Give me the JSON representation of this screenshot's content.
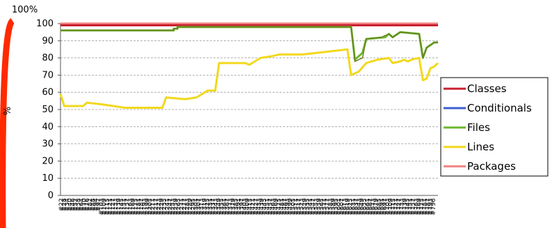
{
  "chart_data": {
    "type": "line",
    "y_unit_label": "100%",
    "ylabel": "%",
    "ylim": [
      0,
      100
    ],
    "yticks": [
      0,
      10,
      20,
      30,
      40,
      50,
      60,
      70,
      80,
      90,
      100
    ],
    "grid": true,
    "legend_position": "right",
    "x_labels": [
      "#22",
      "#28",
      "#34",
      "#40",
      "#46",
      "#52",
      "#58",
      "#64",
      "#70",
      "#76",
      "#82",
      "#88",
      "#94",
      "#97",
      "#103",
      "#109",
      "#115",
      "#121",
      "#127",
      "#133",
      "#139",
      "#145",
      "#151",
      "#157",
      "#163",
      "#169",
      "#175",
      "#181",
      "#187",
      "#193",
      "#199",
      "#205",
      "#211",
      "#217",
      "#223",
      "#229",
      "#235",
      "#241",
      "#247",
      "#253",
      "#259",
      "#265",
      "#271",
      "#277",
      "#283",
      "#289",
      "#295",
      "#301",
      "#307",
      "#313",
      "#319",
      "#325",
      "#331",
      "#337",
      "#343",
      "#349",
      "#355",
      "#361",
      "#367",
      "#373",
      "#379",
      "#385",
      "#391",
      "#397",
      "#403",
      "#409",
      "#415",
      "#421",
      "#427",
      "#433",
      "#439",
      "#445",
      "#451",
      "#457",
      "#463",
      "#469",
      "#475",
      "#481",
      "#487",
      "#493",
      "#499",
      "#505",
      "#511",
      "#517",
      "#523",
      "#529",
      "#535",
      "#541",
      "#547",
      "#553",
      "#559",
      "#565",
      "#571",
      "#577",
      "#583",
      "#589",
      "#595",
      "#601",
      "#607",
      "#613",
      "#619",
      "#625",
      "#631",
      "#637",
      "#643",
      "#649",
      "#655",
      "#661",
      "#667",
      "#673",
      "#679",
      "#685",
      "#691",
      "#697",
      "#703",
      "#709",
      "#715",
      "#721",
      "#727",
      "#733",
      "#739",
      "#745",
      "#751",
      "#757",
      "#763",
      "#769",
      "#775",
      "#781",
      "#787",
      "#793",
      "#796"
    ],
    "series": [
      {
        "name": "Classes",
        "color": "#c8202e",
        "points": [
          [
            0,
            99
          ],
          [
            1,
            99
          ]
        ]
      },
      {
        "name": "Conditionals",
        "color": "#3a5fcd",
        "points": []
      },
      {
        "name": "Files",
        "color": "#6bb82e",
        "points": [
          [
            0,
            96
          ],
          [
            0.3,
            96
          ],
          [
            0.3,
            97
          ],
          [
            0.31,
            97
          ],
          [
            0.31,
            98
          ],
          [
            0.77,
            98
          ],
          [
            0.78,
            79
          ],
          [
            0.8,
            83
          ],
          [
            0.81,
            91
          ],
          [
            0.86,
            92
          ],
          [
            0.87,
            94
          ],
          [
            0.88,
            92
          ],
          [
            0.9,
            95
          ],
          [
            0.95,
            94
          ],
          [
            0.96,
            80
          ],
          [
            0.97,
            86
          ],
          [
            0.99,
            89
          ],
          [
            1,
            89
          ]
        ]
      },
      {
        "name": "Lines",
        "color": "#f2d81c",
        "points": [
          [
            0,
            59
          ],
          [
            0.01,
            52
          ],
          [
            0.06,
            52
          ],
          [
            0.07,
            54
          ],
          [
            0.11,
            53
          ],
          [
            0.14,
            52
          ],
          [
            0.17,
            51
          ],
          [
            0.27,
            51
          ],
          [
            0.28,
            57
          ],
          [
            0.33,
            56
          ],
          [
            0.36,
            57
          ],
          [
            0.39,
            61
          ],
          [
            0.41,
            61
          ],
          [
            0.42,
            77
          ],
          [
            0.49,
            77
          ],
          [
            0.5,
            76
          ],
          [
            0.53,
            80
          ],
          [
            0.56,
            81
          ],
          [
            0.58,
            82
          ],
          [
            0.64,
            82
          ],
          [
            0.68,
            83
          ],
          [
            0.72,
            84
          ],
          [
            0.76,
            85
          ],
          [
            0.77,
            70
          ],
          [
            0.79,
            72
          ],
          [
            0.81,
            77
          ],
          [
            0.84,
            79
          ],
          [
            0.87,
            80
          ],
          [
            0.88,
            77
          ],
          [
            0.9,
            78
          ],
          [
            0.91,
            79
          ],
          [
            0.92,
            78
          ],
          [
            0.93,
            79
          ],
          [
            0.95,
            80
          ],
          [
            0.96,
            67
          ],
          [
            0.97,
            68
          ],
          [
            0.98,
            74
          ],
          [
            0.99,
            75
          ],
          [
            1,
            77
          ]
        ]
      },
      {
        "name": "Packages",
        "color": "#f08080",
        "points": [
          [
            0,
            100
          ],
          [
            1,
            100
          ]
        ]
      }
    ],
    "dark_green_overlay": {
      "color": "#6b7f1f",
      "points": [
        [
          0,
          96
        ],
        [
          0.3,
          96
        ],
        [
          0.3,
          97
        ],
        [
          0.31,
          97
        ],
        [
          0.31,
          98
        ],
        [
          0.77,
          98
        ],
        [
          0.78,
          78
        ],
        [
          0.8,
          80
        ],
        [
          0.81,
          91
        ],
        [
          0.85,
          92
        ],
        [
          0.87,
          94
        ],
        [
          0.88,
          92
        ],
        [
          0.9,
          95
        ],
        [
          0.95,
          94
        ],
        [
          0.96,
          80
        ],
        [
          0.97,
          86
        ],
        [
          0.99,
          89
        ],
        [
          1,
          89
        ]
      ]
    }
  }
}
